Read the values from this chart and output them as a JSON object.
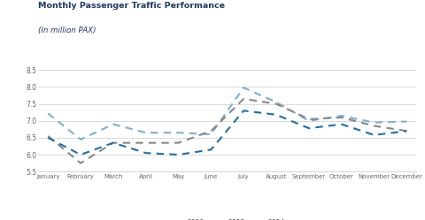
{
  "title_line1": "Monthly Passenger Traffic Performance",
  "title_line2": "(In million PAX)",
  "months": [
    "January",
    "February",
    "March",
    "April",
    "May",
    "June",
    "July",
    "August",
    "September",
    "October",
    "November",
    "December"
  ],
  "series": {
    "2019": [
      7.22,
      6.45,
      6.9,
      6.65,
      6.65,
      6.6,
      7.98,
      7.55,
      7.0,
      7.15,
      6.95,
      6.98
    ],
    "2023": [
      6.55,
      5.75,
      6.35,
      6.35,
      6.35,
      6.7,
      7.65,
      7.5,
      7.05,
      7.1,
      6.85,
      6.7
    ],
    "2024": [
      6.5,
      6.0,
      6.35,
      6.05,
      6.0,
      6.15,
      7.3,
      7.18,
      6.78,
      6.9,
      6.58,
      6.7
    ]
  },
  "colors": {
    "2019": "#7bafd4",
    "2023": "#888888",
    "2024": "#1a6faf"
  },
  "ylim": [
    5.5,
    8.75
  ],
  "yticks": [
    5.5,
    6.0,
    6.5,
    7.0,
    7.5,
    8.0,
    8.5
  ],
  "title_color": "#1f3864",
  "subtitle_color": "#1f3864",
  "background_color": "#ffffff",
  "linewidth": 1.5
}
